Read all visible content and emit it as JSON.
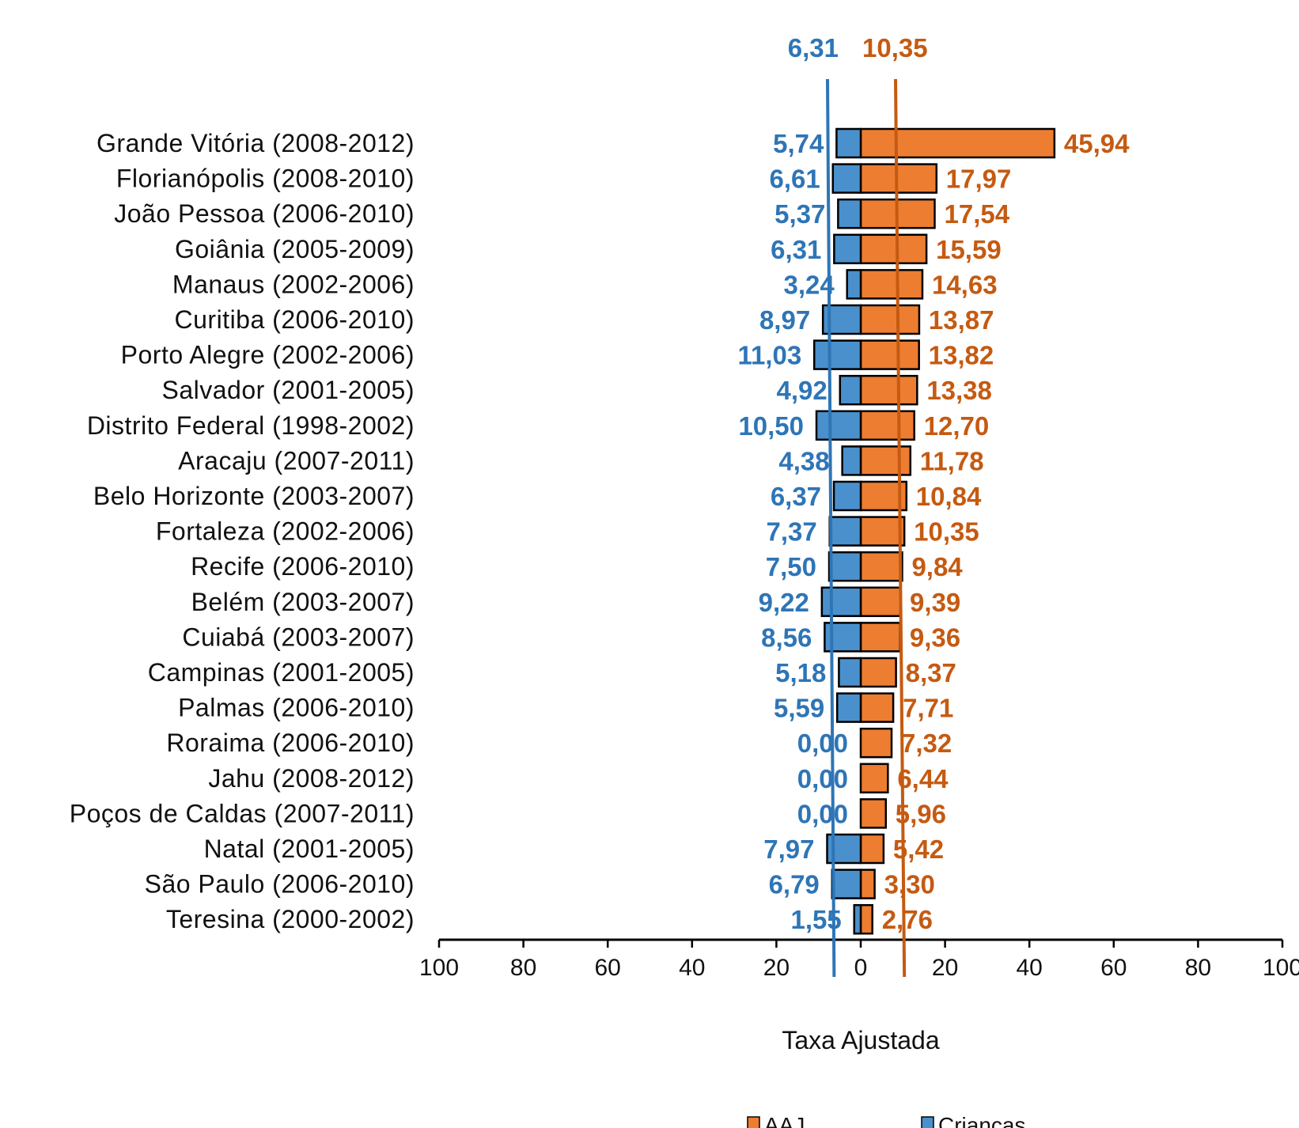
{
  "chart_data": {
    "type": "bar",
    "orientation": "horizontal-back-to-back",
    "categories": [
      "Grande Vitória (2008-2012)",
      "Florianópolis (2008-2010)",
      "João Pessoa (2006-2010)",
      "Goiânia (2005-2009)",
      "Manaus (2002-2006)",
      "Curitiba (2006-2010)",
      "Porto Alegre (2002-2006)",
      "Salvador (2001-2005)",
      "Distrito Federal (1998-2002)",
      "Aracaju (2007-2011)",
      "Belo Horizonte (2003-2007)",
      "Fortaleza (2002-2006)",
      "Recife (2006-2010)",
      "Belém (2003-2007)",
      "Cuiabá (2003-2007)",
      "Campinas (2001-2005)",
      "Palmas (2006-2010)",
      "Roraima (2006-2010)",
      "Jahu (2008-2012)",
      "Poços de Caldas (2007-2011)",
      "Natal (2001-2005)",
      "São Paulo (2006-2010)",
      "Teresina (2000-2002)"
    ],
    "series": [
      {
        "name": "AAJ",
        "side": "right",
        "color": "#ED7D31",
        "values": [
          45.94,
          17.97,
          17.54,
          15.59,
          14.63,
          13.87,
          13.82,
          13.38,
          12.7,
          11.78,
          10.84,
          10.35,
          9.84,
          9.39,
          9.36,
          8.37,
          7.71,
          7.32,
          6.44,
          5.96,
          5.42,
          3.3,
          2.76
        ],
        "labels": [
          "45,94",
          "17,97",
          "17,54",
          "15,59",
          "14,63",
          "13,87",
          "13,82",
          "13,38",
          "12,70",
          "11,78",
          "10,84",
          "10,35",
          "9,84",
          "9,39",
          "9,36",
          "8,37",
          "7,71",
          "7,32",
          "6,44",
          "5,96",
          "5,42",
          "3,30",
          "2,76"
        ],
        "label_color": "#C55A11"
      },
      {
        "name": "Crianças",
        "side": "left",
        "color": "#4A90CC",
        "values": [
          5.74,
          6.61,
          5.37,
          6.31,
          3.24,
          8.97,
          11.03,
          4.92,
          10.5,
          4.38,
          6.37,
          7.37,
          7.5,
          9.22,
          8.56,
          5.18,
          5.59,
          0.0,
          0.0,
          0.0,
          7.97,
          6.79,
          1.55
        ],
        "labels": [
          "5,74",
          "6,61",
          "5,37",
          "6,31",
          "3,24",
          "8,97",
          "11,03",
          "4,92",
          "10,50",
          "4,38",
          "6,37",
          "7,37",
          "7,50",
          "9,22",
          "8,56",
          "5,18",
          "5,59",
          "0,00",
          "0,00",
          "0,00",
          "7,97",
          "6,79",
          "1,55"
        ],
        "label_color": "#2E75B6"
      }
    ],
    "reference_lines": [
      {
        "series": "Crianças",
        "value": 6.31,
        "label": "6,31",
        "color": "#2E75B6"
      },
      {
        "series": "AAJ",
        "value": 10.35,
        "label": "10,35",
        "color": "#C55A11"
      }
    ],
    "xlim": [
      -100,
      100
    ],
    "xticks": [
      -100,
      -80,
      -60,
      -40,
      -20,
      0,
      20,
      40,
      60,
      80,
      100
    ],
    "xtick_labels": [
      "100",
      "80",
      "60",
      "40",
      "20",
      "0",
      "20",
      "40",
      "60",
      "80",
      "100"
    ],
    "xlabel": "Taxa Ajustada",
    "ylabel": "",
    "title": "",
    "grid": false,
    "legend": {
      "position": "bottom",
      "entries": [
        {
          "label": "AAJ",
          "color": "#ED7D31"
        },
        {
          "label": "Crianças",
          "color": "#4A90CC"
        }
      ]
    }
  }
}
